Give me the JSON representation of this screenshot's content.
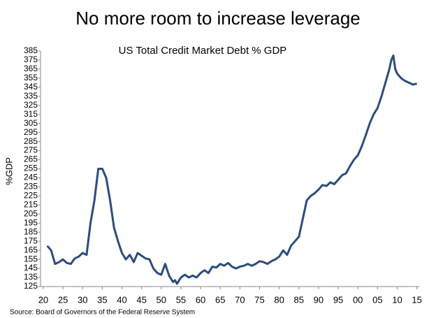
{
  "title": "No more room to increase leverage",
  "chart_data": {
    "type": "line",
    "title": "US Total Credit Market Debt % GDP",
    "y_label": "%GDP",
    "source": "Source: Board of Governors of the Federal Reserve System",
    "x": [
      1921,
      1922,
      1923,
      1924,
      1925,
      1926,
      1927,
      1928,
      1929,
      1930,
      1931,
      1932,
      1933,
      1934,
      1935,
      1936,
      1937,
      1938,
      1939,
      1940,
      1941,
      1942,
      1943,
      1944,
      1945,
      1946,
      1947,
      1948,
      1949,
      1950,
      1951,
      1952,
      1953,
      1953.5,
      1954,
      1955,
      1956,
      1957,
      1958,
      1959,
      1960,
      1961,
      1962,
      1963,
      1964,
      1965,
      1966,
      1967,
      1968,
      1969,
      1970,
      1971,
      1972,
      1973,
      1974,
      1975,
      1976,
      1977,
      1978,
      1979,
      1980,
      1981,
      1982,
      1983,
      1984,
      1985,
      1986,
      1987,
      1988,
      1989,
      1990,
      1991,
      1992,
      1993,
      1994,
      1995,
      1996,
      1997,
      1998,
      1999,
      2000,
      2001,
      2002,
      2003,
      2004,
      2005,
      2006,
      2007,
      2008,
      2008.5,
      2009,
      2009.5,
      2010,
      2011,
      2012,
      2013,
      2014,
      2015
    ],
    "series": [
      {
        "name": "US Total Credit Market Debt % GDP",
        "color": "#2b4c7e",
        "values": [
          170,
          165,
          150,
          152,
          155,
          151,
          150,
          156,
          158,
          162,
          160,
          195,
          220,
          255,
          255,
          245,
          220,
          190,
          175,
          162,
          155,
          160,
          152,
          162,
          159,
          156,
          155,
          145,
          140,
          138,
          150,
          137,
          130,
          132,
          128,
          135,
          138,
          135,
          137,
          135,
          140,
          143,
          140,
          147,
          146,
          150,
          148,
          151,
          147,
          145,
          147,
          148,
          150,
          148,
          150,
          153,
          152,
          150,
          153,
          155,
          158,
          165,
          160,
          170,
          175,
          180,
          200,
          220,
          225,
          228,
          232,
          237,
          236,
          240,
          238,
          243,
          248,
          250,
          258,
          265,
          270,
          280,
          292,
          305,
          315,
          322,
          335,
          350,
          365,
          375,
          380,
          365,
          360,
          355,
          352,
          350,
          348,
          349
        ]
      }
    ],
    "xlim": [
      1919.3,
      2015.6
    ],
    "ylim": [
      125,
      385
    ],
    "xticks": [
      {
        "value": 1920,
        "label": "20"
      },
      {
        "value": 1925,
        "label": "25"
      },
      {
        "value": 1930,
        "label": "30"
      },
      {
        "value": 1935,
        "label": "35"
      },
      {
        "value": 1940,
        "label": "40"
      },
      {
        "value": 1945,
        "label": "45"
      },
      {
        "value": 1950,
        "label": "50"
      },
      {
        "value": 1955,
        "label": "55"
      },
      {
        "value": 1960,
        "label": "60"
      },
      {
        "value": 1965,
        "label": "65"
      },
      {
        "value": 1970,
        "label": "70"
      },
      {
        "value": 1975,
        "label": "75"
      },
      {
        "value": 1980,
        "label": "80"
      },
      {
        "value": 1985,
        "label": "85"
      },
      {
        "value": 1990,
        "label": "90"
      },
      {
        "value": 1995,
        "label": "95"
      },
      {
        "value": 2000,
        "label": "00"
      },
      {
        "value": 2005,
        "label": "05"
      },
      {
        "value": 2010,
        "label": "10"
      },
      {
        "value": 2015,
        "label": "15"
      }
    ],
    "yticks": [
      125,
      135,
      145,
      155,
      165,
      175,
      185,
      195,
      205,
      215,
      225,
      235,
      245,
      255,
      265,
      275,
      285,
      295,
      305,
      315,
      325,
      335,
      345,
      355,
      365,
      375,
      385
    ],
    "grid": false
  }
}
